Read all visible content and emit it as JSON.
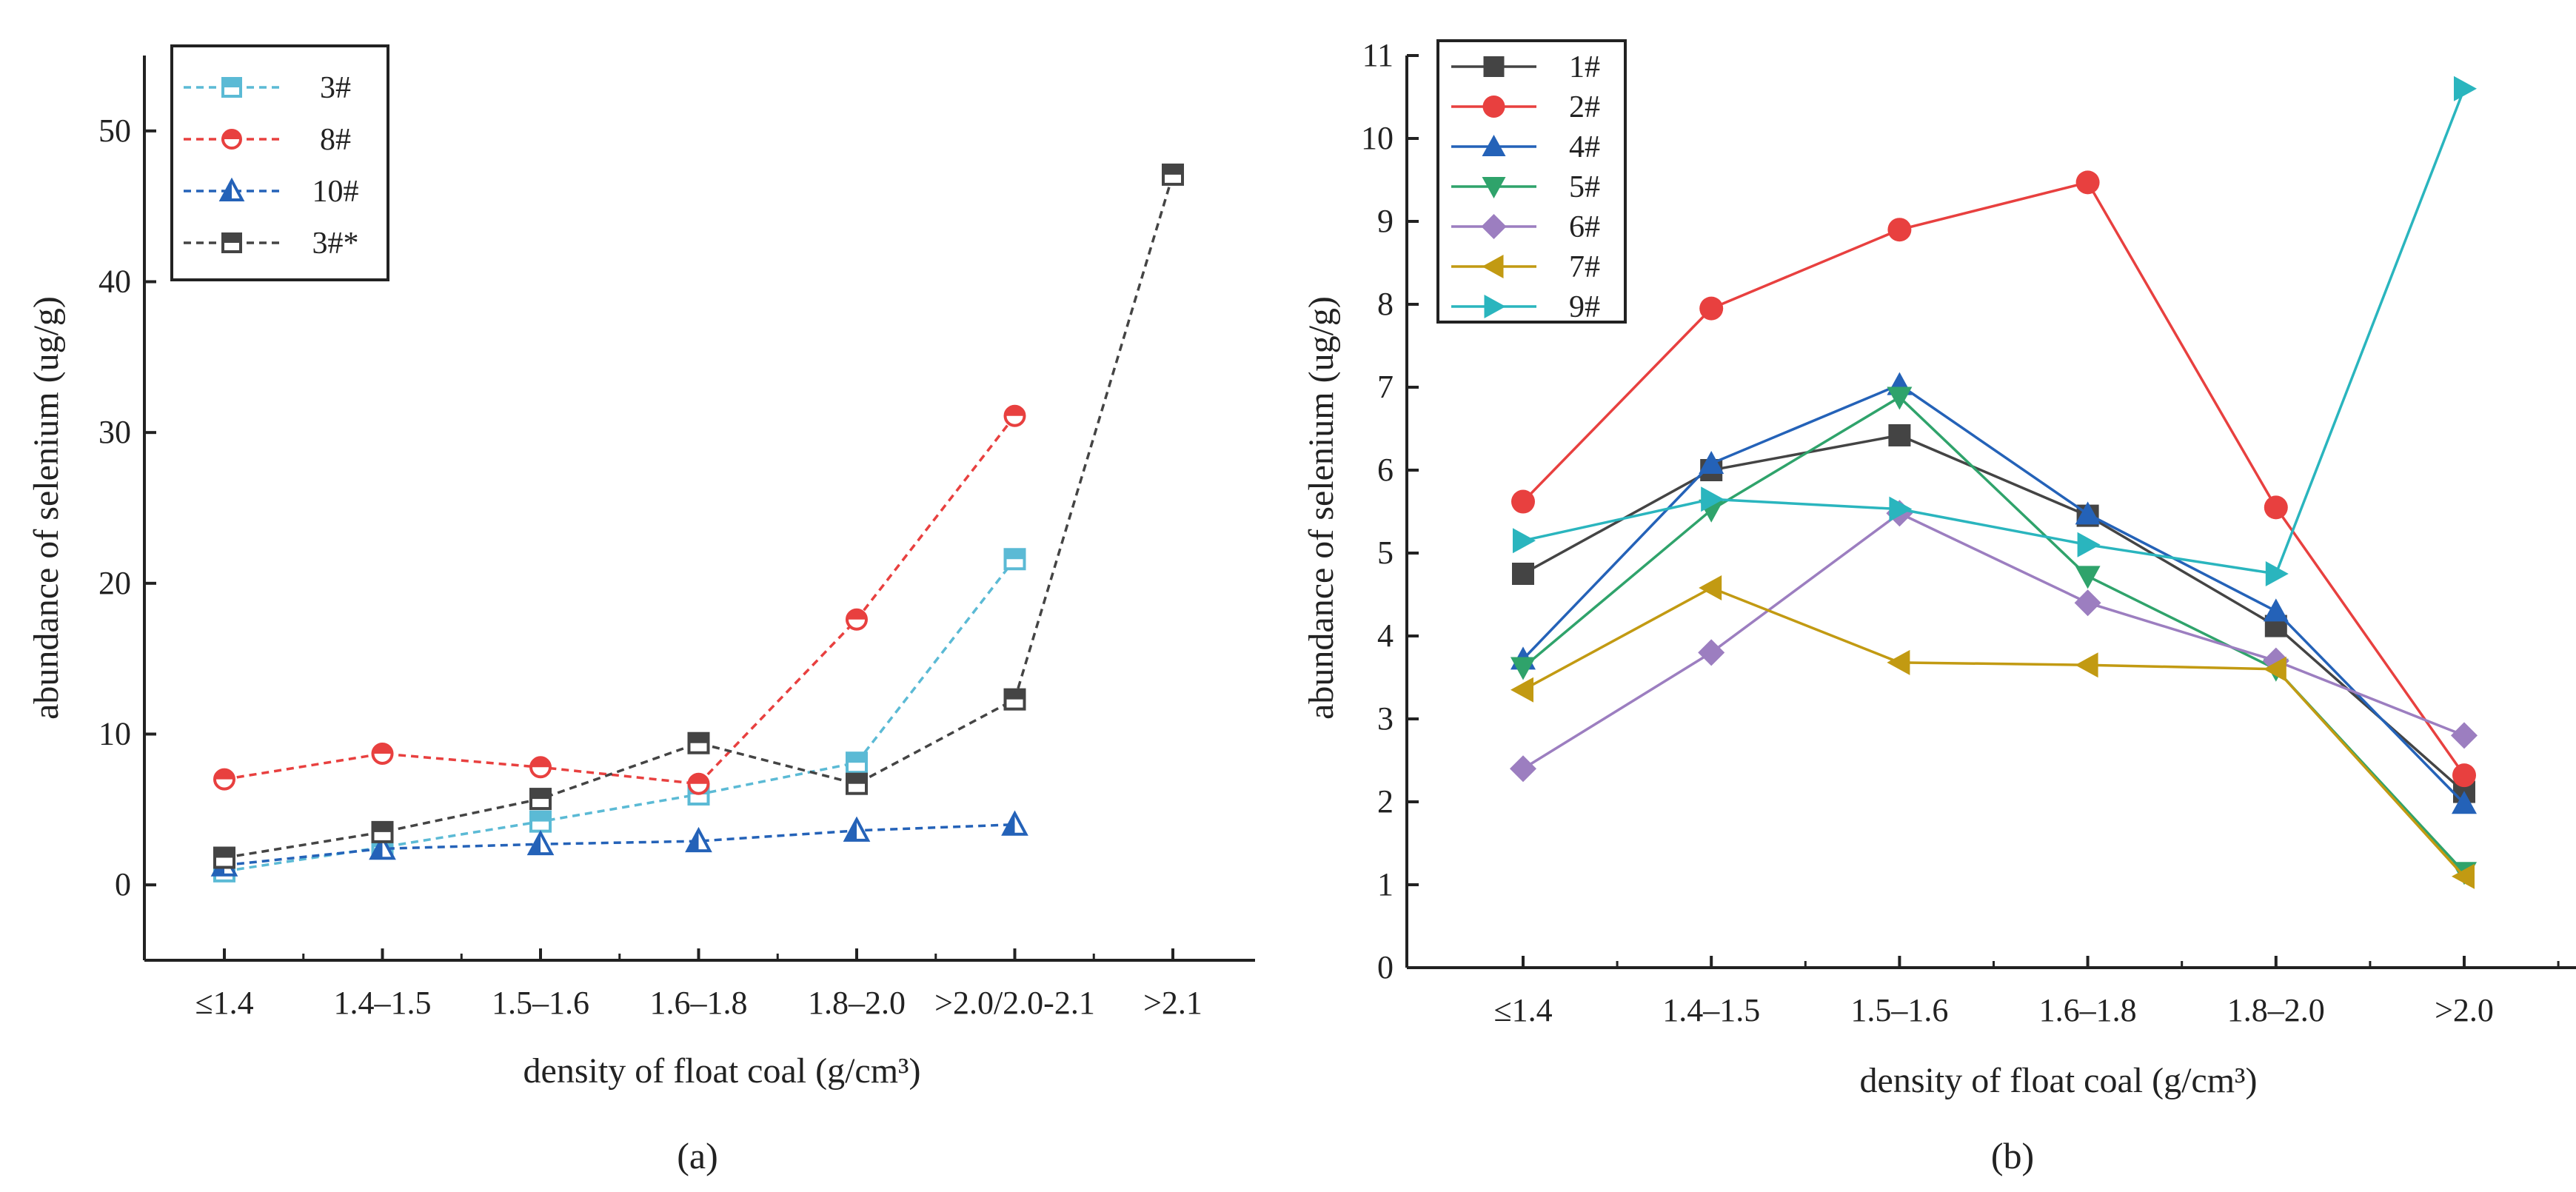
{
  "chart_data": [
    {
      "type": "line",
      "panel_label": "(a)",
      "xlabel": "density of float coal (g/cm³)",
      "ylabel": "abundance of selenium (ug/g)",
      "ylim": [
        -5,
        55
      ],
      "yticks": [
        0,
        10,
        20,
        30,
        40,
        50
      ],
      "categories": [
        "≤1.4",
        "1.4–1.5",
        "1.5–1.6",
        "1.6–1.8",
        "1.8–2.0",
        ">2.0/2.0-2.1",
        ">2.1"
      ],
      "legend_position": "top-left",
      "series": [
        {
          "name": "3#",
          "color": "#5bbad5",
          "marker": "square-half",
          "dash": true,
          "values": [
            0.9,
            2.5,
            4.2,
            6.0,
            8.1,
            21.6,
            null
          ]
        },
        {
          "name": "8#",
          "color": "#e8403f",
          "marker": "circle-half",
          "dash": true,
          "values": [
            7.0,
            8.7,
            7.8,
            6.7,
            17.6,
            31.1,
            null
          ]
        },
        {
          "name": "10#",
          "color": "#2462b8",
          "marker": "triangle-half",
          "dash": true,
          "values": [
            1.3,
            2.4,
            2.7,
            2.9,
            3.6,
            4.0,
            null
          ]
        },
        {
          "name": "3#*",
          "color": "#444444",
          "marker": "square-half-dark",
          "dash": true,
          "values": [
            1.8,
            3.5,
            5.7,
            9.4,
            6.7,
            12.3,
            47.1
          ]
        }
      ]
    },
    {
      "type": "line",
      "panel_label": "(b)",
      "xlabel": "density of float coal (g/cm³)",
      "ylabel": "abundance of selenium (ug/g)",
      "ylim": [
        0,
        11
      ],
      "yticks": [
        0,
        1,
        2,
        3,
        4,
        5,
        6,
        7,
        8,
        9,
        10,
        11
      ],
      "categories": [
        "≤1.4",
        "1.4–1.5",
        "1.5–1.6",
        "1.6–1.8",
        "1.8–2.0",
        ">2.0"
      ],
      "legend_position": "top-left",
      "series": [
        {
          "name": "1#",
          "color": "#444444",
          "marker": "square",
          "values": [
            4.75,
            6.0,
            6.42,
            5.45,
            4.12,
            2.12
          ]
        },
        {
          "name": "2#",
          "color": "#e8403f",
          "marker": "circle",
          "values": [
            5.62,
            7.95,
            8.9,
            9.47,
            5.55,
            2.32
          ]
        },
        {
          "name": "4#",
          "color": "#2462b8",
          "marker": "triangle-up",
          "values": [
            3.72,
            6.08,
            7.03,
            5.47,
            4.3,
            1.98
          ]
        },
        {
          "name": "5#",
          "color": "#2fa36b",
          "marker": "triangle-down",
          "values": [
            3.62,
            5.52,
            6.88,
            4.72,
            3.6,
            1.15
          ]
        },
        {
          "name": "6#",
          "color": "#9c7ec0",
          "marker": "diamond",
          "values": [
            2.4,
            3.8,
            5.48,
            4.4,
            3.7,
            2.8
          ]
        },
        {
          "name": "7#",
          "color": "#c29a12",
          "marker": "triangle-left",
          "values": [
            3.35,
            4.58,
            3.68,
            3.65,
            3.6,
            1.1
          ]
        },
        {
          "name": "9#",
          "color": "#2ab5be",
          "marker": "triangle-right",
          "values": [
            5.15,
            5.65,
            5.53,
            5.1,
            4.75,
            10.6
          ]
        }
      ]
    }
  ]
}
